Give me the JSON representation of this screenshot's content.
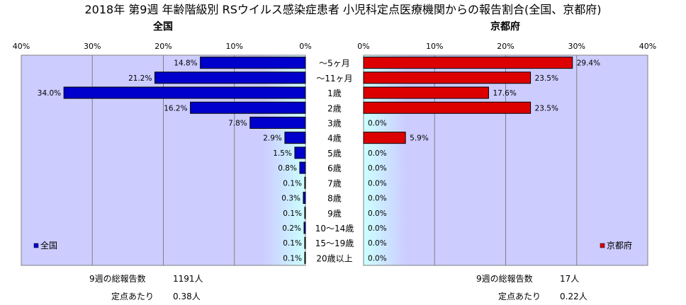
{
  "title": "2018年 第9週 年齢階級別 RSウイルス感染症患者 小児科定点医療機関からの報告割合(全国、京都府)",
  "chart_data": [
    {
      "type": "bar",
      "orientation": "horizontal",
      "direction": "right-to-left",
      "title": "全国",
      "xlim": [
        0,
        40
      ],
      "ticks": [
        "40%",
        "30%",
        "20%",
        "10%",
        "0%"
      ],
      "tick_values": [
        40,
        30,
        20,
        10,
        0
      ],
      "grid": true,
      "legend": {
        "label": "全国",
        "placement": "bottom-left"
      },
      "color": "#0000cc",
      "categories": [
        "～5ヶ月",
        "～11ヶ月",
        "1歳",
        "2歳",
        "3歳",
        "4歳",
        "5歳",
        "6歳",
        "7歳",
        "8歳",
        "9歳",
        "10～14歳",
        "15～19歳",
        "20歳以上"
      ],
      "values": [
        14.8,
        21.2,
        34.0,
        16.2,
        7.8,
        2.9,
        1.5,
        0.8,
        0.1,
        0.3,
        0.1,
        0.2,
        0.1,
        0.1
      ],
      "value_labels": [
        "14.8%",
        "21.2%",
        "34.0%",
        "16.2%",
        "7.8%",
        "2.9%",
        "1.5%",
        "0.8%",
        "0.1%",
        "0.3%",
        "0.1%",
        "0.2%",
        "0.1%",
        "0.1%"
      ]
    },
    {
      "type": "bar",
      "orientation": "horizontal",
      "direction": "left-to-right",
      "title": "京都府",
      "xlim": [
        0,
        40
      ],
      "ticks": [
        "0%",
        "10%",
        "20%",
        "30%",
        "40%"
      ],
      "tick_values": [
        0,
        10,
        20,
        30,
        40
      ],
      "grid": true,
      "legend": {
        "label": "京都府",
        "placement": "bottom-right"
      },
      "color": "#dd0000",
      "categories": [
        "～5ヶ月",
        "～11ヶ月",
        "1歳",
        "2歳",
        "3歳",
        "4歳",
        "5歳",
        "6歳",
        "7歳",
        "8歳",
        "9歳",
        "10～14歳",
        "15～19歳",
        "20歳以上"
      ],
      "values": [
        29.4,
        23.5,
        17.6,
        23.5,
        0.0,
        5.9,
        0.0,
        0.0,
        0.0,
        0.0,
        0.0,
        0.0,
        0.0,
        0.0
      ],
      "value_labels": [
        "29.4%",
        "23.5%",
        "17.6%",
        "23.5%",
        "0.0%",
        "5.9%",
        "0.0%",
        "0.0%",
        "0.0%",
        "0.0%",
        "0.0%",
        "0.0%",
        "0.0%",
        "0.0%"
      ]
    }
  ],
  "colors": {
    "plot_background": "#ccccff",
    "zero_side_background": "#ccffff",
    "national_bar": "#0000cc",
    "kyoto_bar": "#dd0000",
    "gridline": "#808080"
  },
  "footer": {
    "national": {
      "total_label": "9週の総報告数",
      "total_value": "1191人",
      "per_point_label": "定点あたり",
      "per_point_value": "0.38人"
    },
    "kyoto": {
      "total_label": "9週の総報告数",
      "total_value": "17人",
      "per_point_label": "定点あたり",
      "per_point_value": "0.22人"
    }
  }
}
